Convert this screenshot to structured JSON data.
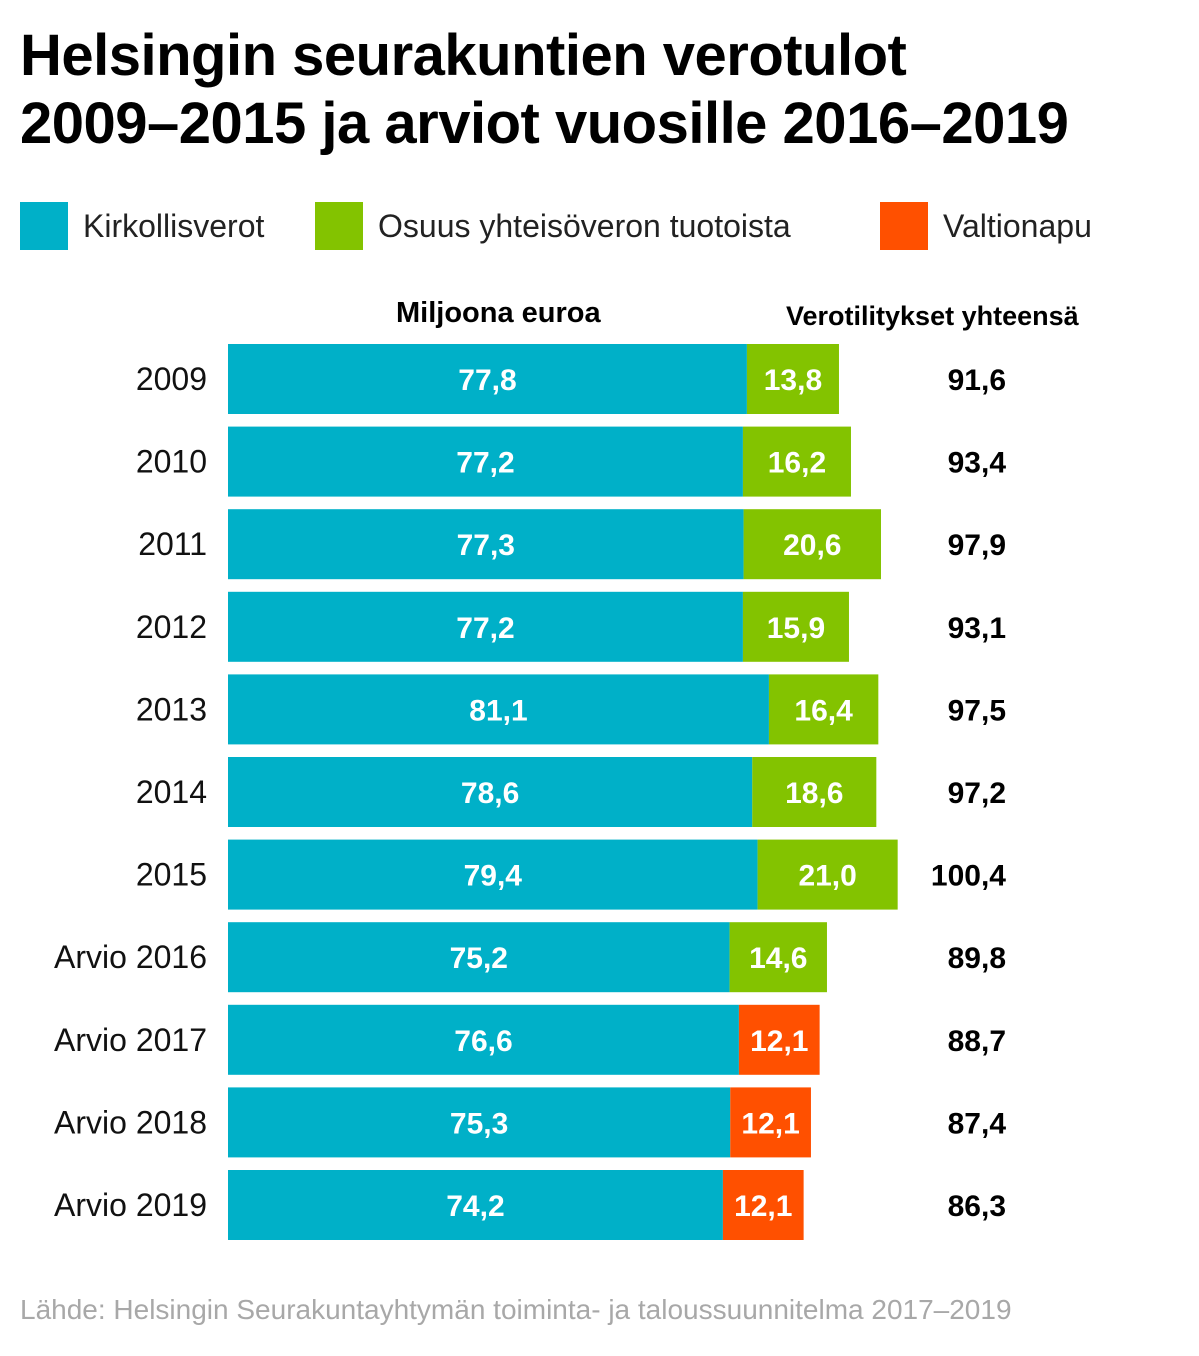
{
  "chart_data": {
    "type": "bar",
    "orientation": "horizontal",
    "stacked": true,
    "title_lines": [
      "Helsingin seurakuntien verotulot",
      "2009–2015 ja arviot vuosille 2016–2019"
    ],
    "unit_label": "Miljoona euroa",
    "totals_header": "Verotilitykset yhteensä",
    "legend": [
      {
        "key": "kirkollisverot",
        "label": "Kirkollisverot",
        "color": "#00b0c8"
      },
      {
        "key": "yhteisovero",
        "label": "Osuus yhteisöveron tuotoista",
        "color": "#83c300"
      },
      {
        "key": "valtionapu",
        "label": "Valtionapu",
        "color": "#ff5000"
      }
    ],
    "rows": [
      {
        "label": "2009",
        "segments": [
          {
            "series": "kirkollisverot",
            "value": 77.8,
            "text": "77,8"
          },
          {
            "series": "yhteisovero",
            "value": 13.8,
            "text": "13,8"
          }
        ],
        "total": "91,6"
      },
      {
        "label": "2010",
        "segments": [
          {
            "series": "kirkollisverot",
            "value": 77.2,
            "text": "77,2"
          },
          {
            "series": "yhteisovero",
            "value": 16.2,
            "text": "16,2"
          }
        ],
        "total": "93,4"
      },
      {
        "label": "2011",
        "segments": [
          {
            "series": "kirkollisverot",
            "value": 77.3,
            "text": "77,3"
          },
          {
            "series": "yhteisovero",
            "value": 20.6,
            "text": "20,6"
          }
        ],
        "total": "97,9"
      },
      {
        "label": "2012",
        "segments": [
          {
            "series": "kirkollisverot",
            "value": 77.2,
            "text": "77,2"
          },
          {
            "series": "yhteisovero",
            "value": 15.9,
            "text": "15,9"
          }
        ],
        "total": "93,1"
      },
      {
        "label": "2013",
        "segments": [
          {
            "series": "kirkollisverot",
            "value": 81.1,
            "text": "81,1"
          },
          {
            "series": "yhteisovero",
            "value": 16.4,
            "text": "16,4"
          }
        ],
        "total": "97,5"
      },
      {
        "label": "2014",
        "segments": [
          {
            "series": "kirkollisverot",
            "value": 78.6,
            "text": "78,6"
          },
          {
            "series": "yhteisovero",
            "value": 18.6,
            "text": "18,6"
          }
        ],
        "total": "97,2"
      },
      {
        "label": "2015",
        "segments": [
          {
            "series": "kirkollisverot",
            "value": 79.4,
            "text": "79,4"
          },
          {
            "series": "yhteisovero",
            "value": 21.0,
            "text": "21,0"
          }
        ],
        "total": "100,4"
      },
      {
        "label": "Arvio 2016",
        "segments": [
          {
            "series": "kirkollisverot",
            "value": 75.2,
            "text": "75,2"
          },
          {
            "series": "yhteisovero",
            "value": 14.6,
            "text": "14,6"
          }
        ],
        "total": "89,8"
      },
      {
        "label": "Arvio 2017",
        "segments": [
          {
            "series": "kirkollisverot",
            "value": 76.6,
            "text": "76,6"
          },
          {
            "series": "valtionapu",
            "value": 12.1,
            "text": "12,1"
          }
        ],
        "total": "88,7"
      },
      {
        "label": "Arvio 2018",
        "segments": [
          {
            "series": "kirkollisverot",
            "value": 75.3,
            "text": "75,3"
          },
          {
            "series": "valtionapu",
            "value": 12.1,
            "text": "12,1"
          }
        ],
        "total": "87,4"
      },
      {
        "label": "Arvio 2019",
        "segments": [
          {
            "series": "kirkollisverot",
            "value": 74.2,
            "text": "74,2"
          },
          {
            "series": "valtionapu",
            "value": 12.1,
            "text": "12,1"
          }
        ],
        "total": "86,3"
      }
    ],
    "source": "Lähde: Helsingin Seurakuntayhtymän toiminta- ja taloussuunnitelma 2017–2019"
  }
}
